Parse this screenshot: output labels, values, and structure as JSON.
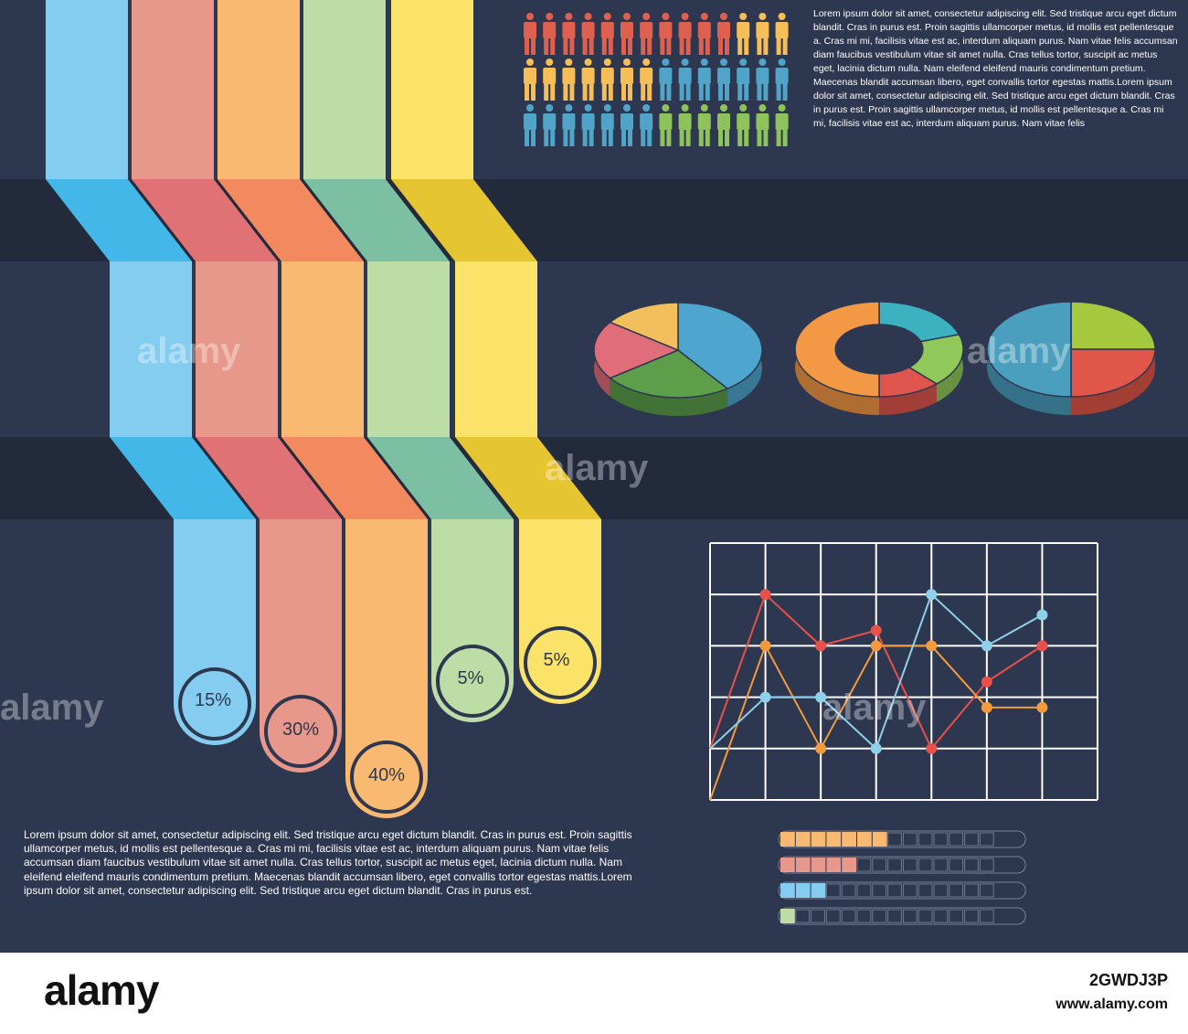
{
  "colors": {
    "background": "#2e3750",
    "band": "#222a3c",
    "blue": "#85cdf0",
    "blue_dark": "#43b7e8",
    "salmon": "#e7988a",
    "salmon_dark": "#e07175",
    "orange": "#f9b970",
    "orange_dark": "#f38a5f",
    "green": "#bddda6",
    "green_dark": "#7dbfa2",
    "yellow": "#fbe36a",
    "yellow_dark": "#e6c532"
  },
  "text": {
    "top_paragraph": "Lorem ipsum dolor sit amet, consectetur adipiscing elit. Sed tristique arcu eget dictum blandit. Cras in purus est. Proin sagittis ullamcorper metus, id mollis est pellentesque a. Cras mi mi, facilisis vitae est ac, interdum aliquam purus. Nam vitae felis accumsan diam faucibus vestibulum vitae sit amet nulla. Cras tellus tortor, suscipit ac metus eget, lacinia dictum nulla. Nam eleifend eleifend mauris condimentum pretium. Maecenas blandit accumsan libero, eget convallis tortor egestas mattis.Lorem ipsum dolor sit amet, consectetur adipiscing elit. Sed tristique arcu eget dictum blandit. Cras in purus est. Proin sagittis ullamcorper metus, id mollis est pellentesque a. Cras mi mi, facilisis vitae est ac, interdum aliquam purus. Nam vitae felis",
    "bottom_paragraph": "Lorem ipsum dolor sit amet, consectetur adipiscing elit. Sed tristique arcu eget dictum blandit. Cras in purus est. Proin sagittis ullamcorper metus, id mollis est pellentesque a. Cras mi mi, facilisis vitae est ac, interdum aliquam purus. Nam vitae felis accumsan diam faucibus vestibulum vitae sit amet nulla. Cras tellus tortor, suscipit ac metus eget, lacinia dictum nulla. Nam eleifend eleifend mauris condimentum pretium. Maecenas blandit accumsan libero, eget convallis tortor egestas mattis.Lorem ipsum dolor sit amet, consectetur adipiscing elit. Sed tristique arcu eget dictum blandit. Cras in purus est."
  },
  "watermark": {
    "brand": "alamy",
    "image_id": "2GWDJ3P",
    "url": "www.alamy.com",
    "mark": "a"
  },
  "chart_data": [
    {
      "type": "bar",
      "title": "",
      "categories": [
        "blue",
        "salmon",
        "orange",
        "green",
        "yellow"
      ],
      "values": [
        15,
        30,
        40,
        5,
        5
      ],
      "labels": [
        "15%",
        "30%",
        "40%",
        "5%",
        "5%"
      ]
    },
    {
      "type": "pictogram",
      "rows": [
        [
          "red",
          "red",
          "red",
          "red",
          "red",
          "red",
          "red",
          "red",
          "red",
          "red",
          "red",
          "yellow",
          "yellow",
          "yellow"
        ],
        [
          "yellow",
          "yellow",
          "yellow",
          "yellow",
          "yellow",
          "yellow",
          "yellow",
          "blue",
          "blue",
          "blue",
          "blue",
          "blue",
          "blue",
          "blue"
        ],
        [
          "blue",
          "blue",
          "blue",
          "blue",
          "blue",
          "blue",
          "blue",
          "green",
          "green",
          "green",
          "green",
          "green",
          "green",
          "green"
        ]
      ],
      "palette": {
        "red": "#e0604f",
        "yellow": "#f5be56",
        "blue": "#4fa4c8",
        "green": "#8ec25a"
      }
    },
    {
      "type": "pie",
      "slices": [
        {
          "value": 40,
          "color": "#4ea6ce"
        },
        {
          "value": 25,
          "color": "#5c9e4a"
        },
        {
          "value": 20,
          "color": "#e06d7a"
        },
        {
          "value": 15,
          "color": "#f1c05c"
        }
      ]
    },
    {
      "type": "pie",
      "donut": true,
      "slices": [
        {
          "value": 20,
          "color": "#3cb2c0"
        },
        {
          "value": 18,
          "color": "#90c95a"
        },
        {
          "value": 12,
          "color": "#e0564e"
        },
        {
          "value": 50,
          "color": "#f39845"
        }
      ]
    },
    {
      "type": "pie",
      "slices": [
        {
          "value": 25,
          "color": "#a6c83e"
        },
        {
          "value": 25,
          "color": "#e05749"
        },
        {
          "value": 50,
          "color": "#4a9fbe"
        }
      ]
    },
    {
      "type": "line",
      "x": [
        0,
        1,
        2,
        3,
        4,
        5,
        6,
        7
      ],
      "xlim": [
        0,
        7
      ],
      "ylim": [
        0,
        5
      ],
      "grid": true,
      "series": [
        {
          "color": "#e8504a",
          "values": [
            1,
            4,
            3,
            3.3,
            1,
            2.3,
            3
          ]
        },
        {
          "color": "#f39b3c",
          "values": [
            0,
            3,
            1,
            3,
            3,
            1.8,
            1.8
          ]
        },
        {
          "color": "#8fd0ea",
          "values": [
            1,
            2,
            2,
            1,
            4,
            3,
            3.6
          ]
        }
      ],
      "x_values": [
        0.5,
        1,
        2,
        3,
        4,
        5,
        6
      ],
      "x_note": "",
      "marker_color_override": []
    },
    {
      "type": "progress",
      "total_cells": 14,
      "bars": [
        {
          "filled": 7,
          "color": "#f9b970"
        },
        {
          "filled": 5,
          "color": "#e7988a"
        },
        {
          "filled": 3,
          "color": "#85cdf0"
        },
        {
          "filled": 1,
          "color": "#bddda6"
        }
      ]
    }
  ]
}
